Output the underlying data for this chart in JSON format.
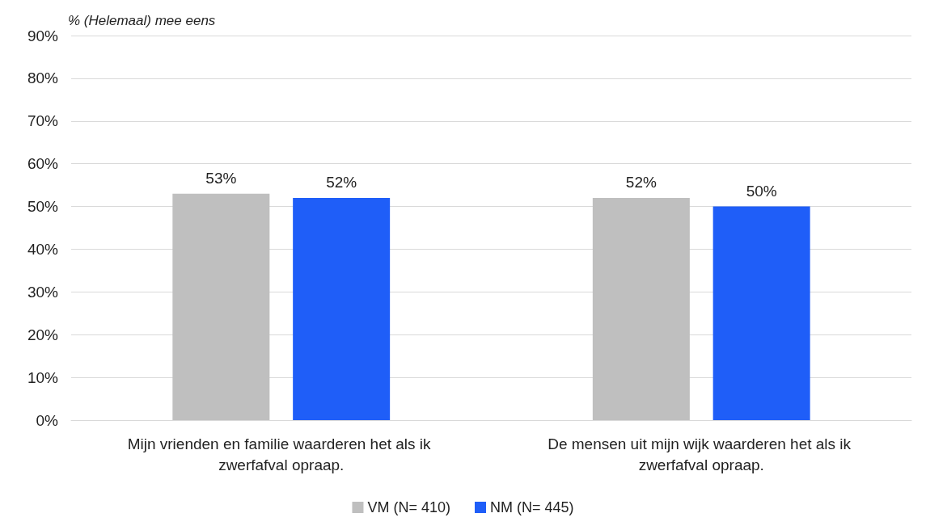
{
  "chart_data": {
    "type": "bar",
    "ylabel": "% (Helemaal) mee eens",
    "categories": [
      "Mijn vrienden en familie waarderen het als ik zwerfafval opraap.",
      "De mensen uit mijn wijk waarderen het als ik zwerfafval opraap."
    ],
    "series": [
      {
        "name": "VM (N= 410)",
        "color": "#bfbfbf",
        "values": [
          53,
          52
        ],
        "value_labels": [
          "53%",
          "52%"
        ]
      },
      {
        "name": "NM (N= 445)",
        "color": "#1f5ef8",
        "values": [
          52,
          50
        ],
        "value_labels": [
          "52%",
          "50%"
        ]
      }
    ],
    "ylim": [
      0,
      90
    ],
    "yticks": [
      {
        "value": 0,
        "label": "0%"
      },
      {
        "value": 10,
        "label": "10%"
      },
      {
        "value": 20,
        "label": "20%"
      },
      {
        "value": 30,
        "label": "30%"
      },
      {
        "value": 40,
        "label": "40%"
      },
      {
        "value": 50,
        "label": "50%"
      },
      {
        "value": 60,
        "label": "60%"
      },
      {
        "value": 70,
        "label": "70%"
      },
      {
        "value": 80,
        "label": "80%"
      },
      {
        "value": 90,
        "label": "90%"
      }
    ],
    "grid": "y",
    "legend": "bottom"
  }
}
